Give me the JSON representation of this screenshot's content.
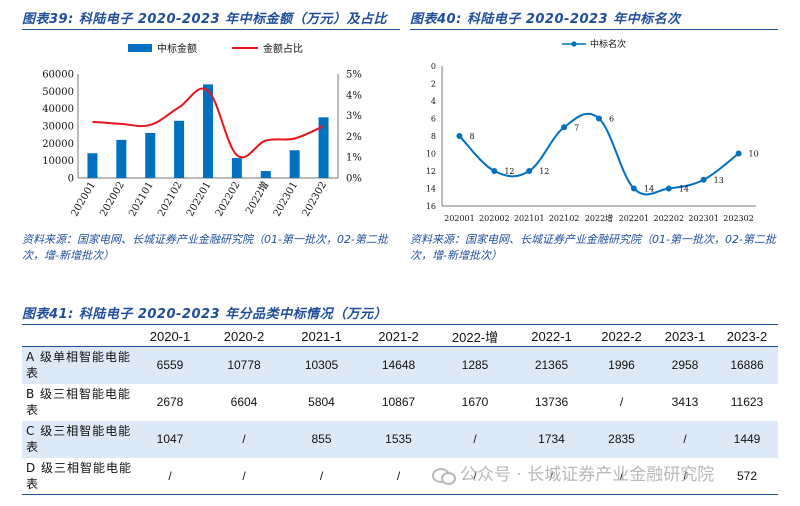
{
  "figures": {
    "fig39": {
      "title": "图表39: 科陆电子 2020-2023 年中标金额（万元）及占比",
      "source": "资料来源：国家电网、长城证券产业金融研究院（01-第一批次，02-第二批次，增-新增批次）"
    },
    "fig40": {
      "title": "图表40: 科陆电子 2020-2023 年中标名次",
      "source": "资料来源：国家电网、长城证券产业金融研究院（01-第一批次，02-第二批次，增-新增批次）"
    },
    "fig41": {
      "title": "图表41: 科陆电子 2020-2023 年分品类中标情况（万元）"
    }
  },
  "chart_data": [
    {
      "type": "bar",
      "categories": [
        "202001",
        "202002",
        "202101",
        "202102",
        "202201",
        "202202",
        "2022增",
        "202301",
        "202302"
      ],
      "series": [
        {
          "name": "中标金额",
          "type": "bar",
          "axis": "left",
          "color": "#0070c0",
          "values": [
            14284,
            22000,
            26000,
            33000,
            54000,
            11500,
            4000,
            16000,
            35000
          ]
        },
        {
          "name": "金额占比",
          "type": "line",
          "axis": "right",
          "color": "#e8141c",
          "values": [
            2.7,
            2.6,
            2.55,
            3.4,
            4.2,
            1.1,
            1.8,
            1.9,
            2.5
          ]
        }
      ],
      "y_left": {
        "min": 0,
        "max": 60000,
        "ticks": [
          "0",
          "10000",
          "20000",
          "30000",
          "40000",
          "50000",
          "60000"
        ]
      },
      "y_right": {
        "min": 0,
        "max": 5,
        "ticks": [
          "0%",
          "1%",
          "2%",
          "3%",
          "4%",
          "5%"
        ]
      },
      "legend": "top"
    },
    {
      "type": "line",
      "categories": [
        "202001",
        "202002",
        "202101",
        "202102",
        "2022增",
        "202201",
        "202202",
        "202301",
        "202302"
      ],
      "series": [
        {
          "name": "中标名次",
          "color": "#0070c0",
          "values": [
            8,
            12,
            12,
            7,
            6,
            14,
            14,
            13,
            10
          ],
          "labels": [
            "8",
            "12",
            "12",
            "7",
            "6",
            "14",
            "14",
            "13",
            "10"
          ]
        }
      ],
      "y": {
        "min": 0,
        "max": 16,
        "inverted": true,
        "ticks": [
          "0",
          "2",
          "4",
          "6",
          "8",
          "10",
          "12",
          "14",
          "16"
        ]
      },
      "legend": "top-left"
    }
  ],
  "table": {
    "headers": [
      "",
      "2020-1",
      "2020-2",
      "2021-1",
      "2021-2",
      "2022-增",
      "2022-1",
      "2022-2",
      "2023-1",
      "2023-2"
    ],
    "rows": [
      {
        "label": "A 级单相智能电能表",
        "values": [
          "6559",
          "10778",
          "10305",
          "14648",
          "1285",
          "21365",
          "1996",
          "2958",
          "16886"
        ]
      },
      {
        "label": "B 级三相智能电能表",
        "values": [
          "2678",
          "6604",
          "5804",
          "10867",
          "1670",
          "13736",
          "/",
          "3413",
          "11623"
        ]
      },
      {
        "label": "C 级三相智能电能表",
        "values": [
          "1047",
          "/",
          "855",
          "1535",
          "/",
          "1734",
          "2835",
          "/",
          "1449"
        ]
      },
      {
        "label": "D 级三相智能电能表",
        "values": [
          "/",
          "/",
          "/",
          "/",
          "/",
          "/",
          "/",
          "/",
          "572"
        ]
      }
    ]
  },
  "watermark": "公众号 · 长城证券产业金融研究院"
}
